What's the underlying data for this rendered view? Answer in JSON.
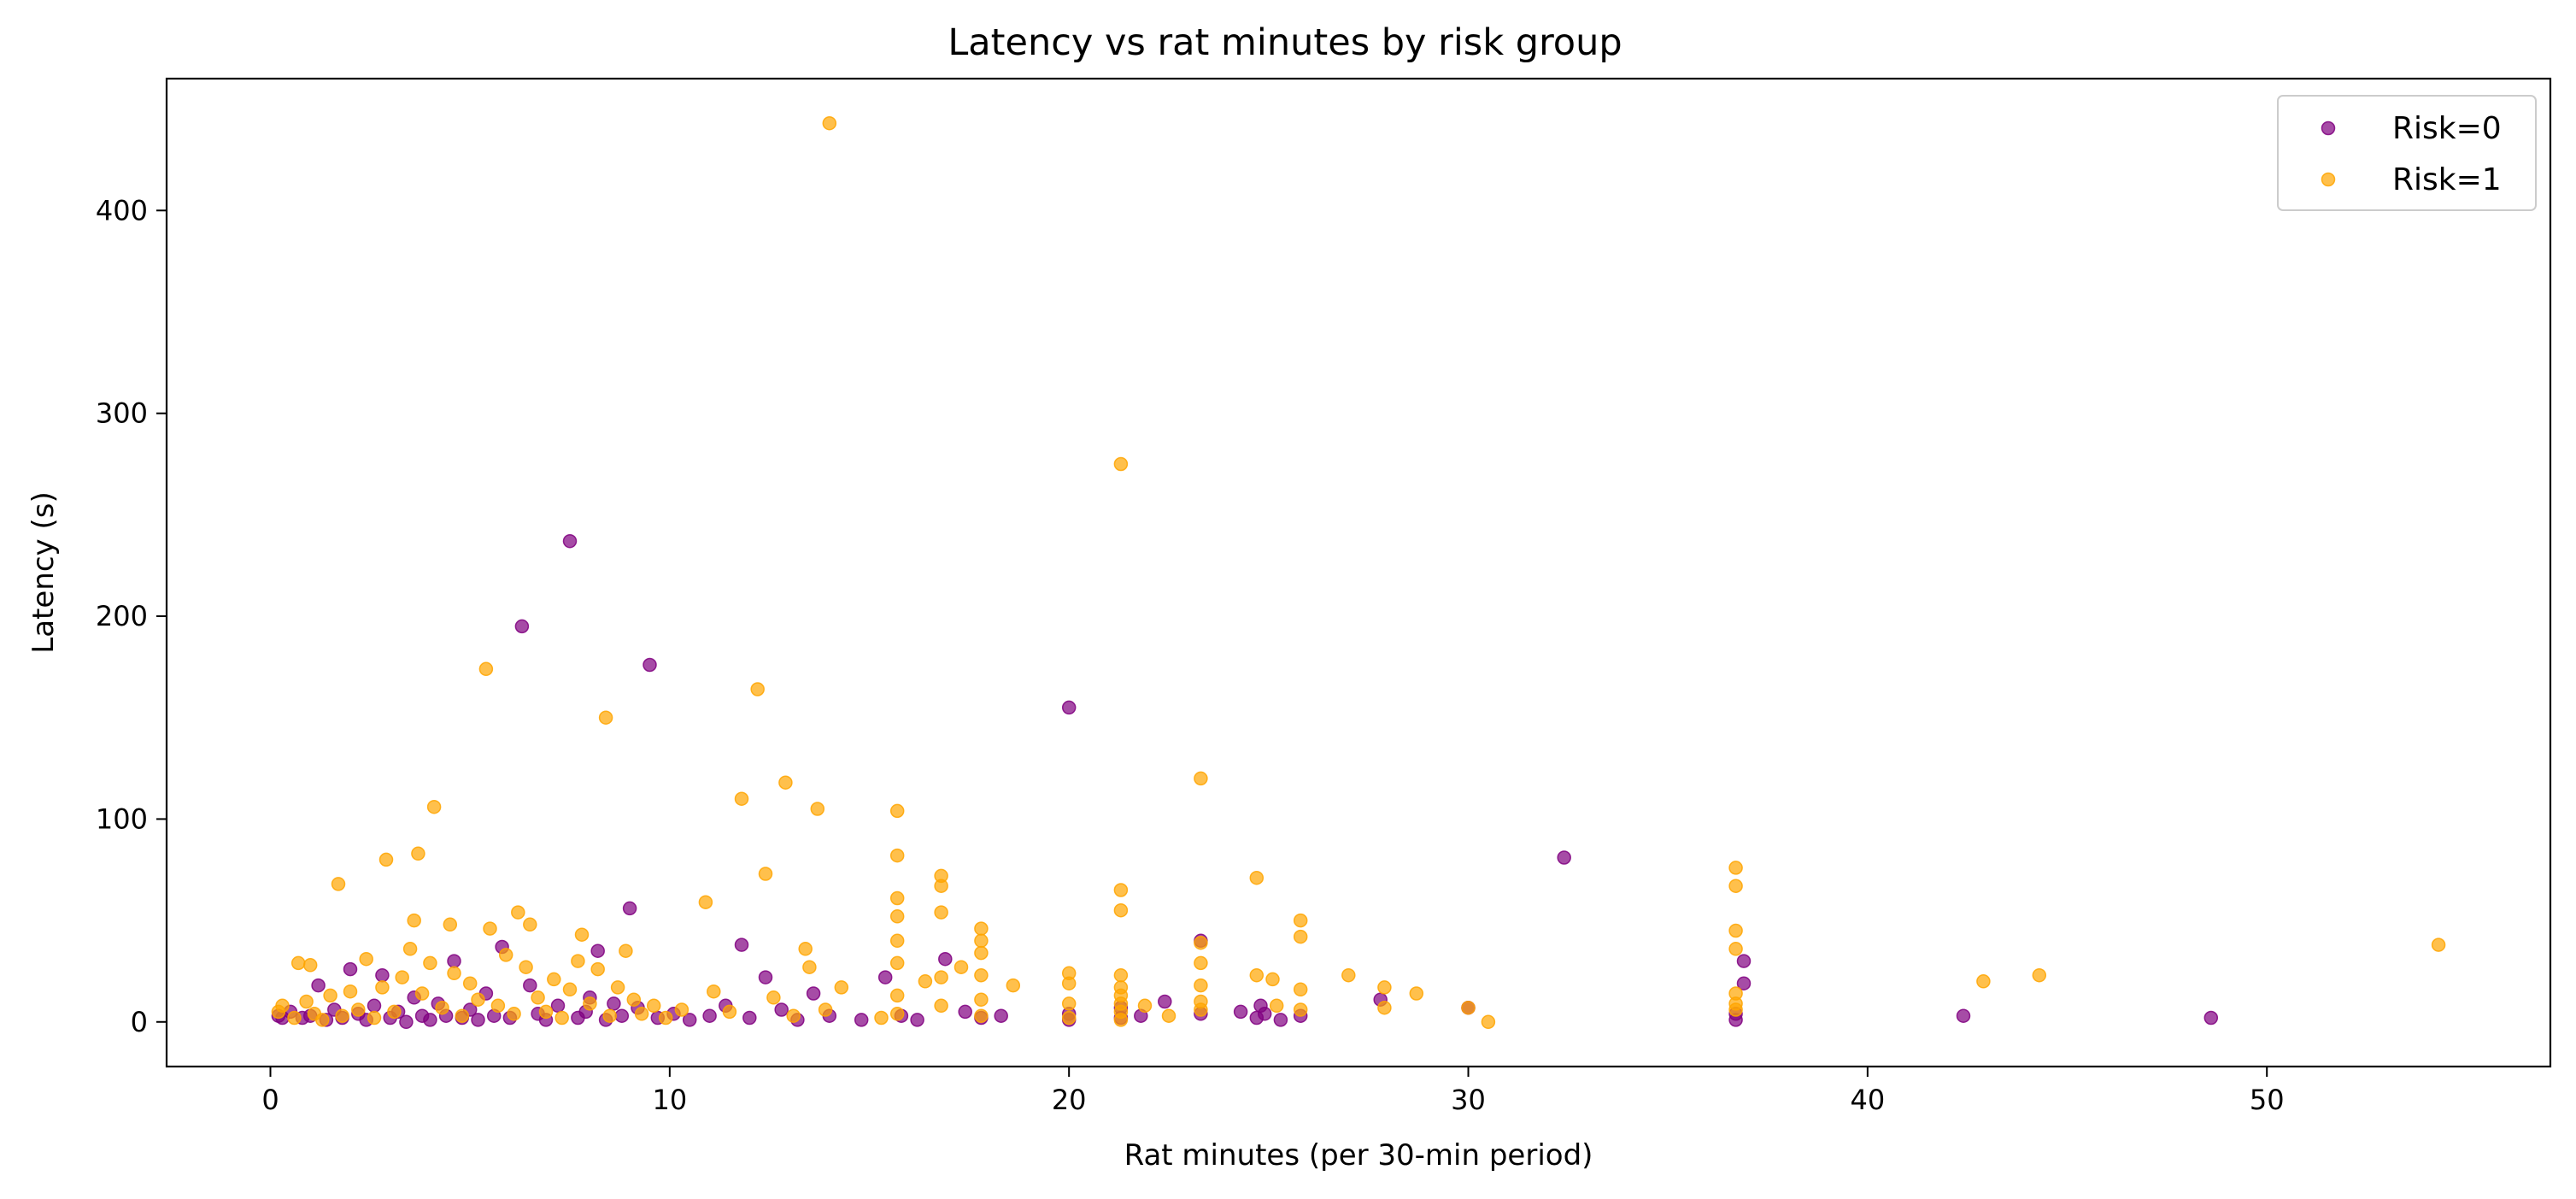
{
  "chart_data": {
    "type": "scatter",
    "title": "Latency vs rat minutes by risk group",
    "xlabel": "Rat minutes (per 30-min period)",
    "ylabel": "Latency (s)",
    "xlim": [
      -2.6,
      57.1
    ],
    "ylim": [
      -22,
      465
    ],
    "xticks": [
      0,
      10,
      20,
      30,
      40,
      50
    ],
    "yticks": [
      0,
      100,
      200,
      300,
      400
    ],
    "grid": false,
    "legend_position": "top-right",
    "series": [
      {
        "name": "Risk=0",
        "color": "#800080",
        "points": [
          [
            0.2,
            3
          ],
          [
            0.3,
            2
          ],
          [
            0.5,
            5
          ],
          [
            0.8,
            2
          ],
          [
            1.0,
            3
          ],
          [
            1.2,
            18
          ],
          [
            1.4,
            1
          ],
          [
            1.6,
            6
          ],
          [
            1.8,
            2
          ],
          [
            2.0,
            26
          ],
          [
            2.2,
            4
          ],
          [
            2.4,
            1
          ],
          [
            2.6,
            8
          ],
          [
            2.8,
            23
          ],
          [
            3.0,
            2
          ],
          [
            3.2,
            5
          ],
          [
            3.4,
            0
          ],
          [
            3.6,
            12
          ],
          [
            3.8,
            3
          ],
          [
            4.0,
            1
          ],
          [
            4.2,
            9
          ],
          [
            4.4,
            3
          ],
          [
            4.6,
            30
          ],
          [
            4.8,
            2
          ],
          [
            5.0,
            6
          ],
          [
            5.2,
            1
          ],
          [
            5.4,
            14
          ],
          [
            5.6,
            3
          ],
          [
            5.8,
            37
          ],
          [
            6.0,
            2
          ],
          [
            6.3,
            195
          ],
          [
            6.5,
            18
          ],
          [
            6.7,
            4
          ],
          [
            6.9,
            1
          ],
          [
            7.2,
            8
          ],
          [
            7.5,
            237
          ],
          [
            7.7,
            2
          ],
          [
            7.9,
            5
          ],
          [
            8.0,
            12
          ],
          [
            8.2,
            35
          ],
          [
            8.4,
            1
          ],
          [
            8.6,
            9
          ],
          [
            8.8,
            3
          ],
          [
            9.0,
            56
          ],
          [
            9.2,
            7
          ],
          [
            9.5,
            176
          ],
          [
            9.7,
            2
          ],
          [
            10.1,
            4
          ],
          [
            10.5,
            1
          ],
          [
            11.0,
            3
          ],
          [
            11.4,
            8
          ],
          [
            11.8,
            38
          ],
          [
            12.0,
            2
          ],
          [
            12.4,
            22
          ],
          [
            12.8,
            6
          ],
          [
            13.2,
            1
          ],
          [
            13.6,
            14
          ],
          [
            14.0,
            3
          ],
          [
            14.8,
            1
          ],
          [
            15.4,
            22
          ],
          [
            15.8,
            3
          ],
          [
            16.2,
            1
          ],
          [
            16.9,
            31
          ],
          [
            17.4,
            5
          ],
          [
            17.8,
            2
          ],
          [
            18.3,
            3
          ],
          [
            20.0,
            155
          ],
          [
            20.0,
            4
          ],
          [
            20.0,
            1
          ],
          [
            21.3,
            7
          ],
          [
            21.3,
            2
          ],
          [
            21.8,
            3
          ],
          [
            22.4,
            10
          ],
          [
            23.3,
            40
          ],
          [
            23.3,
            4
          ],
          [
            24.3,
            5
          ],
          [
            24.7,
            2
          ],
          [
            24.8,
            8
          ],
          [
            24.9,
            4
          ],
          [
            25.3,
            1
          ],
          [
            25.8,
            3
          ],
          [
            27.8,
            11
          ],
          [
            30.0,
            7
          ],
          [
            32.4,
            81
          ],
          [
            36.7,
            1
          ],
          [
            36.7,
            4
          ],
          [
            36.9,
            30
          ],
          [
            36.9,
            19
          ],
          [
            42.4,
            3
          ],
          [
            48.6,
            2
          ]
        ]
      },
      {
        "name": "Risk=1",
        "color": "#FFA500",
        "points": [
          [
            0.2,
            5
          ],
          [
            0.3,
            8
          ],
          [
            0.6,
            2
          ],
          [
            0.7,
            29
          ],
          [
            0.9,
            10
          ],
          [
            1.0,
            28
          ],
          [
            1.1,
            4
          ],
          [
            1.3,
            1
          ],
          [
            1.5,
            13
          ],
          [
            1.7,
            68
          ],
          [
            1.8,
            3
          ],
          [
            2.0,
            15
          ],
          [
            2.2,
            6
          ],
          [
            2.4,
            31
          ],
          [
            2.6,
            2
          ],
          [
            2.8,
            17
          ],
          [
            2.9,
            80
          ],
          [
            3.1,
            5
          ],
          [
            3.3,
            22
          ],
          [
            3.5,
            36
          ],
          [
            3.6,
            50
          ],
          [
            3.7,
            83
          ],
          [
            3.8,
            14
          ],
          [
            4.0,
            29
          ],
          [
            4.1,
            106
          ],
          [
            4.3,
            7
          ],
          [
            4.5,
            48
          ],
          [
            4.6,
            24
          ],
          [
            4.8,
            3
          ],
          [
            5.0,
            19
          ],
          [
            5.2,
            11
          ],
          [
            5.4,
            174
          ],
          [
            5.5,
            46
          ],
          [
            5.7,
            8
          ],
          [
            5.9,
            33
          ],
          [
            6.1,
            4
          ],
          [
            6.2,
            54
          ],
          [
            6.4,
            27
          ],
          [
            6.5,
            48
          ],
          [
            6.7,
            12
          ],
          [
            6.9,
            5
          ],
          [
            7.1,
            21
          ],
          [
            7.3,
            2
          ],
          [
            7.5,
            16
          ],
          [
            7.7,
            30
          ],
          [
            7.8,
            43
          ],
          [
            8.0,
            9
          ],
          [
            8.2,
            26
          ],
          [
            8.4,
            150
          ],
          [
            8.5,
            3
          ],
          [
            8.7,
            17
          ],
          [
            8.9,
            35
          ],
          [
            9.1,
            11
          ],
          [
            9.3,
            4
          ],
          [
            9.6,
            8
          ],
          [
            9.9,
            2
          ],
          [
            10.3,
            6
          ],
          [
            10.9,
            59
          ],
          [
            11.1,
            15
          ],
          [
            11.5,
            5
          ],
          [
            11.8,
            110
          ],
          [
            12.2,
            164
          ],
          [
            12.4,
            73
          ],
          [
            12.6,
            12
          ],
          [
            12.9,
            118
          ],
          [
            13.1,
            3
          ],
          [
            13.4,
            36
          ],
          [
            13.5,
            27
          ],
          [
            13.7,
            105
          ],
          [
            13.9,
            6
          ],
          [
            14.0,
            443
          ],
          [
            14.3,
            17
          ],
          [
            15.3,
            2
          ],
          [
            15.7,
            104
          ],
          [
            15.7,
            82
          ],
          [
            15.7,
            61
          ],
          [
            15.7,
            52
          ],
          [
            15.7,
            40
          ],
          [
            15.7,
            29
          ],
          [
            15.7,
            13
          ],
          [
            15.7,
            4
          ],
          [
            16.4,
            20
          ],
          [
            16.8,
            72
          ],
          [
            16.8,
            67
          ],
          [
            16.8,
            54
          ],
          [
            16.8,
            22
          ],
          [
            16.8,
            8
          ],
          [
            17.3,
            27
          ],
          [
            17.8,
            46
          ],
          [
            17.8,
            40
          ],
          [
            17.8,
            34
          ],
          [
            17.8,
            23
          ],
          [
            17.8,
            11
          ],
          [
            17.8,
            3
          ],
          [
            18.6,
            18
          ],
          [
            20.0,
            24
          ],
          [
            20.0,
            19
          ],
          [
            20.0,
            9
          ],
          [
            20.0,
            2
          ],
          [
            21.3,
            275
          ],
          [
            21.3,
            65
          ],
          [
            21.3,
            55
          ],
          [
            21.3,
            23
          ],
          [
            21.3,
            17
          ],
          [
            21.3,
            13
          ],
          [
            21.3,
            9
          ],
          [
            21.3,
            5
          ],
          [
            21.3,
            1
          ],
          [
            21.9,
            8
          ],
          [
            22.5,
            3
          ],
          [
            23.3,
            120
          ],
          [
            23.3,
            39
          ],
          [
            23.3,
            29
          ],
          [
            23.3,
            18
          ],
          [
            23.3,
            10
          ],
          [
            23.3,
            6
          ],
          [
            24.7,
            71
          ],
          [
            24.7,
            23
          ],
          [
            25.1,
            21
          ],
          [
            25.2,
            8
          ],
          [
            25.8,
            50
          ],
          [
            25.8,
            42
          ],
          [
            25.8,
            16
          ],
          [
            25.8,
            6
          ],
          [
            27.0,
            23
          ],
          [
            27.9,
            17
          ],
          [
            27.9,
            7
          ],
          [
            28.7,
            14
          ],
          [
            30.0,
            7
          ],
          [
            30.5,
            0
          ],
          [
            36.7,
            76
          ],
          [
            36.7,
            67
          ],
          [
            36.7,
            45
          ],
          [
            36.7,
            36
          ],
          [
            36.7,
            14
          ],
          [
            36.7,
            9
          ],
          [
            36.7,
            6
          ],
          [
            42.9,
            20
          ],
          [
            44.3,
            23
          ],
          [
            54.3,
            38
          ]
        ]
      }
    ]
  }
}
